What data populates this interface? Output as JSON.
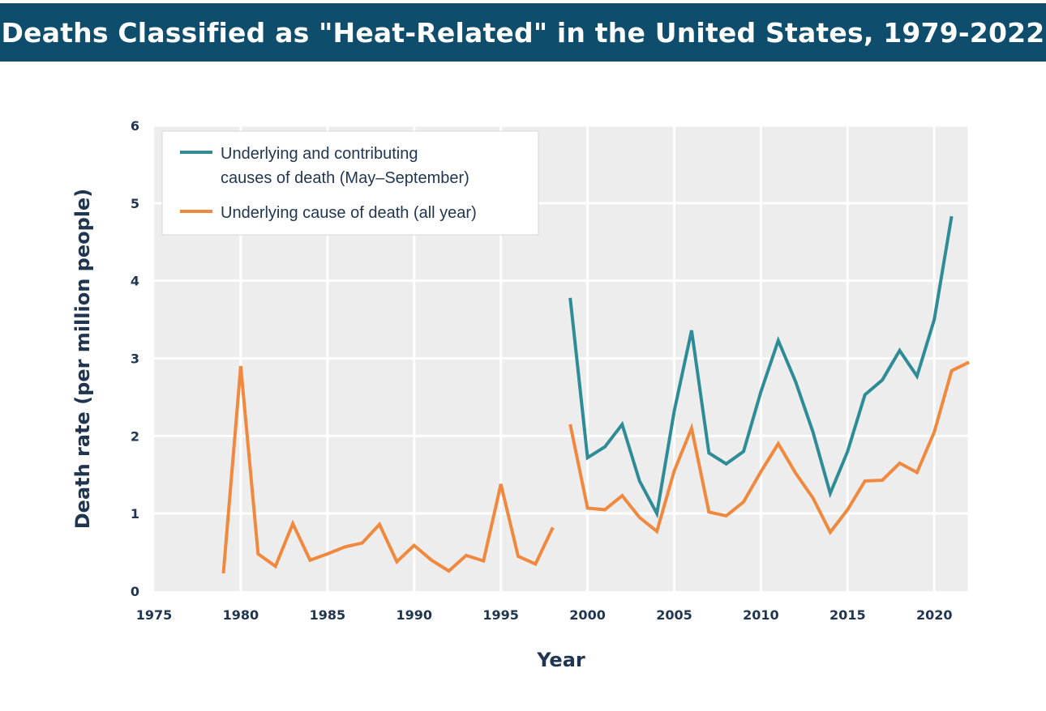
{
  "header": {
    "title": "Deaths Classified as \"Heat-Related\" in the United States, 1979-2022"
  },
  "colors": {
    "header_bg": "#0f4d6c",
    "series_contributing": "#2e8c96",
    "series_underlying": "#f0883e",
    "grid": "#dcdcdc",
    "plot_bg": "#ededed",
    "text": "#1f3550"
  },
  "chart_data": {
    "type": "line",
    "title": "Deaths Classified as \"Heat-Related\" in the United States, 1979-2022",
    "xlabel": "Year",
    "ylabel": "Death rate (per million people)",
    "xlim": [
      1975,
      2022
    ],
    "ylim": [
      0,
      6
    ],
    "x_ticks": [
      "1975",
      "1980",
      "1985",
      "1990",
      "1995",
      "2000",
      "2005",
      "2010",
      "2015",
      "2020"
    ],
    "y_ticks": [
      "0",
      "1",
      "2",
      "3",
      "4",
      "5",
      "6"
    ],
    "grid": true,
    "legend_position": "top-left",
    "series": [
      {
        "name": "Underlying and contributing causes of death (May–September)",
        "legend_lines": [
          "Underlying and contributing",
          "causes of death (May–September)"
        ],
        "color": "#2e8c96",
        "x": [
          1999,
          2000,
          2001,
          2002,
          2003,
          2004,
          2005,
          2006,
          2007,
          2008,
          2009,
          2010,
          2011,
          2012,
          2013,
          2014,
          2015,
          2016,
          2017,
          2018,
          2019,
          2020,
          2021
        ],
        "y": [
          3.78,
          1.72,
          1.86,
          2.15,
          1.42,
          1.0,
          2.32,
          3.36,
          1.78,
          1.64,
          1.8,
          2.57,
          3.23,
          2.7,
          2.05,
          1.26,
          1.8,
          2.53,
          2.72,
          3.1,
          2.77,
          3.5,
          4.83
        ]
      },
      {
        "name": "Underlying cause of death (all year)",
        "legend_lines": [
          "Underlying cause of death (all year)"
        ],
        "color": "#f0883e",
        "segments": [
          {
            "x": [
              1979,
              1980,
              1981,
              1982,
              1983,
              1984,
              1985,
              1986,
              1987,
              1988,
              1989,
              1990,
              1991,
              1992,
              1993,
              1994,
              1995,
              1996,
              1997,
              1998
            ],
            "y": [
              0.23,
              2.9,
              0.48,
              0.32,
              0.87,
              0.4,
              0.48,
              0.57,
              0.62,
              0.86,
              0.38,
              0.59,
              0.4,
              0.26,
              0.46,
              0.39,
              1.38,
              0.45,
              0.35,
              0.82
            ]
          },
          {
            "x": [
              1999,
              2000,
              2001,
              2002,
              2003,
              2004,
              2005,
              2006,
              2007,
              2008,
              2009,
              2010,
              2011,
              2012,
              2013,
              2014,
              2015,
              2016,
              2017,
              2018,
              2019,
              2020,
              2021,
              2022
            ],
            "y": [
              2.15,
              1.07,
              1.05,
              1.23,
              0.95,
              0.77,
              1.55,
              2.1,
              1.02,
              0.97,
              1.15,
              1.54,
              1.9,
              1.52,
              1.2,
              0.76,
              1.05,
              1.42,
              1.43,
              1.65,
              1.53,
              2.05,
              2.84,
              2.95
            ]
          }
        ]
      }
    ]
  }
}
